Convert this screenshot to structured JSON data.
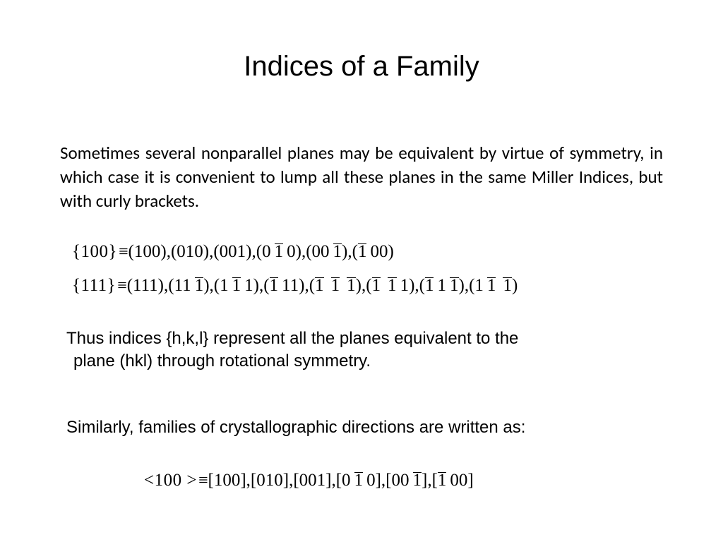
{
  "colors": {
    "bg": "#ffffff",
    "text": "#000000"
  },
  "title": "Indices of a Family",
  "para1": "Sometimes several nonparallel planes may be equivalent by virtue of symmetry, in which case it is convenient to lump all these planes in the same Miller Indices, but with curly brackets.",
  "equations": {
    "eq1": {
      "lhs": "{100}",
      "rhs": [
        {
          "raw": "(100)"
        },
        {
          "raw": "(010)"
        },
        {
          "raw": "(001)"
        },
        {
          "o": "(",
          "d": [
            "0",
            {
              "b": "1"
            },
            "0"
          ],
          "c": ")"
        },
        {
          "o": "(",
          "d": [
            "0",
            "0",
            {
              "b": "1"
            }
          ],
          "c": ")"
        },
        {
          "o": "(",
          "d": [
            {
              "b": "1"
            },
            "0",
            "0"
          ],
          "c": ")"
        }
      ]
    },
    "eq2": {
      "lhs": "{111}",
      "rhs": [
        {
          "raw": "(111)"
        },
        {
          "o": "(",
          "d": [
            "1",
            "1",
            {
              "b": "1"
            }
          ],
          "c": ")"
        },
        {
          "o": "(",
          "d": [
            "1",
            {
              "b": "1"
            },
            "1"
          ],
          "c": ")"
        },
        {
          "o": "(",
          "d": [
            {
              "b": "1"
            },
            "1",
            "1"
          ],
          "c": ")"
        },
        {
          "o": "(",
          "d": [
            {
              "b": "1"
            },
            {
              "b": "1"
            },
            {
              "b": "1"
            }
          ],
          "c": ")"
        },
        {
          "o": "(",
          "d": [
            {
              "b": "1"
            },
            {
              "b": "1"
            },
            "1"
          ],
          "c": ")"
        },
        {
          "o": "(",
          "d": [
            {
              "b": "1"
            },
            "1",
            {
              "b": "1"
            }
          ],
          "c": ")"
        },
        {
          "o": "(",
          "d": [
            "1",
            {
              "b": "1"
            },
            {
              "b": "1"
            }
          ],
          "c": ")"
        }
      ]
    },
    "eq3": {
      "lhs": "<100 >",
      "rhs": [
        {
          "raw": "[100]"
        },
        {
          "raw": "[010]"
        },
        {
          "raw": "[001]"
        },
        {
          "o": "[",
          "d": [
            "0",
            {
              "b": "1"
            },
            "0"
          ],
          "c": "]"
        },
        {
          "o": "[",
          "d": [
            "0",
            "0",
            {
              "b": "1"
            }
          ],
          "c": "]"
        },
        {
          "o": "[",
          "d": [
            {
              "b": "1"
            },
            "0",
            "0"
          ],
          "c": "]"
        }
      ]
    }
  },
  "para2_l1": "Thus indices {h,k,l} represent all the planes equivalent to the",
  "para2_l2": "plane (hkl) through rotational symmetry.",
  "para3": "Similarly, families of crystallographic directions are written as:",
  "typography": {
    "title_fontsize": 40,
    "body_calibri_fontsize": 25,
    "body_arial_fontsize": 24,
    "math_fontsize": 25
  }
}
